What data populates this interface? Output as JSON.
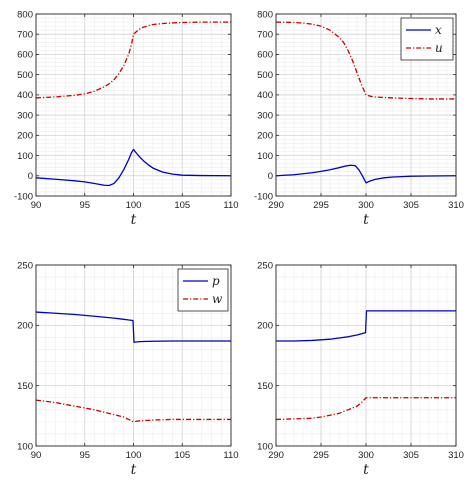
{
  "chart_data": [
    {
      "type": "line",
      "xlabel": "t",
      "xlim": [
        90,
        110
      ],
      "ylim": [
        -100,
        800
      ],
      "xticks": [
        "90",
        "95",
        "100",
        "105",
        "110"
      ],
      "yticks": [
        "-100",
        "0",
        "100",
        "200",
        "300",
        "400",
        "500",
        "600",
        "700",
        "800"
      ],
      "grid": true,
      "legend": [],
      "series": [
        {
          "key": "x",
          "color": "#0000cc",
          "dash": "solid",
          "x": [
            90,
            92,
            94,
            95,
            96,
            97,
            97.5,
            98,
            98.5,
            99,
            99.5,
            99.8,
            100,
            100.3,
            100.6,
            101,
            101.5,
            102,
            103,
            104,
            105,
            107,
            110
          ],
          "y": [
            -10,
            -17,
            -25,
            -30,
            -38,
            -47,
            -48,
            -38,
            -10,
            30,
            80,
            115,
            130,
            112,
            95,
            75,
            55,
            38,
            18,
            8,
            3,
            1,
            0
          ]
        },
        {
          "key": "u",
          "color": "#cc0000",
          "dash": "dashdot",
          "x": [
            90,
            92,
            94,
            95,
            96,
            97,
            97.5,
            98,
            98.5,
            99,
            99.5,
            99.8,
            100,
            100.5,
            101,
            102,
            103,
            104,
            105,
            107,
            110
          ],
          "y": [
            385,
            390,
            398,
            405,
            418,
            440,
            455,
            475,
            505,
            545,
            600,
            650,
            700,
            722,
            735,
            748,
            753,
            756,
            758,
            760,
            760
          ]
        }
      ]
    },
    {
      "type": "line",
      "xlabel": "t",
      "xlim": [
        290,
        310
      ],
      "ylim": [
        -100,
        800
      ],
      "xticks": [
        "290",
        "295",
        "300",
        "305",
        "310"
      ],
      "yticks": [
        "-100",
        "0",
        "100",
        "200",
        "300",
        "400",
        "500",
        "600",
        "700",
        "800"
      ],
      "grid": true,
      "legend": [
        {
          "key": "x",
          "label": "x"
        },
        {
          "key": "u",
          "label": "u"
        }
      ],
      "series": [
        {
          "key": "x",
          "color": "#0000cc",
          "dash": "solid",
          "x": [
            290,
            292,
            294,
            295,
            296,
            297,
            297.7,
            298.3,
            298.8,
            299.2,
            299.6,
            300,
            300.5,
            301,
            302,
            303,
            304,
            305,
            307,
            310
          ],
          "y": [
            0,
            5,
            15,
            22,
            30,
            40,
            48,
            52,
            50,
            30,
            0,
            -35,
            -25,
            -18,
            -10,
            -6,
            -4,
            -2,
            -1,
            0
          ]
        },
        {
          "key": "u",
          "color": "#cc0000",
          "dash": "dashdot",
          "x": [
            290,
            292,
            293,
            294,
            295,
            296,
            297,
            297.5,
            298,
            298.5,
            299,
            299.5,
            300,
            300.5,
            301,
            302,
            303,
            305,
            307,
            310
          ],
          "y": [
            760,
            758,
            755,
            750,
            740,
            720,
            685,
            660,
            620,
            570,
            510,
            450,
            400,
            393,
            390,
            387,
            385,
            382,
            380,
            380
          ]
        }
      ]
    },
    {
      "type": "line",
      "xlabel": "t",
      "xlim": [
        90,
        110
      ],
      "ylim": [
        100,
        250
      ],
      "xticks": [
        "90",
        "95",
        "100",
        "105",
        "110"
      ],
      "yticks": [
        "100",
        "150",
        "200",
        "250"
      ],
      "grid": true,
      "legend": [
        {
          "key": "p",
          "label": "p"
        },
        {
          "key": "w",
          "label": "w"
        }
      ],
      "series": [
        {
          "key": "p",
          "color": "#0000cc",
          "dash": "solid",
          "x": [
            90,
            92,
            94,
            96,
            98,
            99,
            99.95,
            100.05,
            100.5,
            101,
            102,
            104,
            106,
            110
          ],
          "y": [
            211,
            210,
            209,
            207.5,
            206,
            205,
            204,
            186,
            186.4,
            186.6,
            186.8,
            187,
            187,
            187
          ]
        },
        {
          "key": "w",
          "color": "#cc0000",
          "dash": "dashdot",
          "x": [
            90,
            91,
            92,
            93,
            94,
            95,
            96,
            97,
            98,
            99,
            99.5,
            100,
            100.5,
            101,
            102,
            104,
            106,
            110
          ],
          "y": [
            138,
            137,
            136,
            134.5,
            133,
            131.5,
            130,
            128,
            126,
            124,
            122,
            120,
            120.8,
            121,
            121.5,
            122,
            122,
            122
          ]
        }
      ]
    },
    {
      "type": "line",
      "xlabel": "t",
      "xlim": [
        290,
        310
      ],
      "ylim": [
        100,
        250
      ],
      "xticks": [
        "290",
        "295",
        "300",
        "305",
        "310"
      ],
      "yticks": [
        "100",
        "150",
        "200",
        "250"
      ],
      "grid": true,
      "legend": [],
      "series": [
        {
          "key": "p",
          "color": "#0000cc",
          "dash": "solid",
          "x": [
            290,
            292,
            294,
            295,
            296,
            297,
            298,
            299,
            299.5,
            299.95,
            300.05,
            300.5,
            301,
            302,
            304,
            306,
            310
          ],
          "y": [
            187,
            187,
            187.5,
            188,
            188.5,
            189.5,
            190.5,
            192,
            193,
            194,
            212,
            212,
            212,
            212,
            212,
            212,
            212
          ]
        },
        {
          "key": "w",
          "color": "#cc0000",
          "dash": "dashdot",
          "x": [
            290,
            292,
            294,
            295,
            296,
            297,
            298,
            299,
            299.5,
            300,
            300.5,
            301,
            302,
            304,
            306,
            310
          ],
          "y": [
            122,
            122.5,
            123,
            124,
            125.5,
            127,
            130,
            133,
            136,
            140,
            140,
            140,
            140,
            140,
            140,
            140
          ]
        }
      ]
    }
  ]
}
